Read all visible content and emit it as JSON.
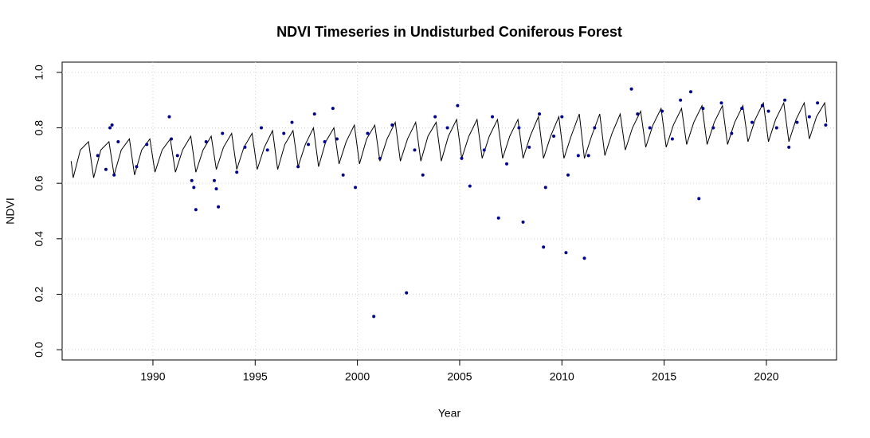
{
  "chart_data": {
    "type": "line",
    "title": "NDVI Timeseries in Undisturbed Coniferous Forest",
    "x_label": "Year",
    "y_label": "NDVI",
    "xlim": [
      1985.56,
      2023.43
    ],
    "ylim": [
      -0.037,
      1.037
    ],
    "xticks": [
      1990,
      1995,
      2000,
      2005,
      2010,
      2015,
      2020
    ],
    "yticks": [
      {
        "value": 0,
        "label": "0.0"
      },
      0.2,
      0.4,
      0.6,
      0.8,
      {
        "value": 1,
        "label": "1.0"
      }
    ],
    "grid": true,
    "line": {
      "color": "#000000",
      "x": [
        1986.0,
        1986.1,
        1986.45,
        1986.85,
        1987.1,
        1987.45,
        1987.85,
        1988.1,
        1988.45,
        1988.85,
        1989.1,
        1989.45,
        1989.85,
        1990.1,
        1990.45,
        1990.85,
        1991.1,
        1991.45,
        1991.85,
        1992.1,
        1992.45,
        1992.85,
        1993.1,
        1993.45,
        1993.85,
        1994.1,
        1994.45,
        1994.85,
        1995.1,
        1995.45,
        1995.85,
        1996.1,
        1996.45,
        1996.85,
        1997.1,
        1997.45,
        1997.85,
        1998.1,
        1998.45,
        1998.85,
        1999.1,
        1999.45,
        1999.85,
        2000.1,
        2000.45,
        2000.85,
        2001.1,
        2001.45,
        2001.85,
        2002.1,
        2002.45,
        2002.85,
        2003.1,
        2003.45,
        2003.85,
        2004.1,
        2004.45,
        2004.85,
        2005.1,
        2005.45,
        2005.85,
        2006.1,
        2006.45,
        2006.85,
        2007.1,
        2007.45,
        2007.85,
        2008.1,
        2008.45,
        2008.85,
        2009.1,
        2009.45,
        2009.85,
        2010.1,
        2010.45,
        2010.85,
        2011.1,
        2011.45,
        2011.85,
        2012.1,
        2012.45,
        2012.85,
        2013.1,
        2013.45,
        2013.85,
        2014.1,
        2014.45,
        2014.85,
        2015.1,
        2015.45,
        2015.85,
        2016.1,
        2016.45,
        2016.85,
        2017.1,
        2017.45,
        2017.85,
        2018.1,
        2018.45,
        2018.85,
        2019.1,
        2019.45,
        2019.85,
        2020.1,
        2020.45,
        2020.85,
        2021.1,
        2021.45,
        2021.85,
        2022.1,
        2022.45,
        2022.85,
        2022.95
      ],
      "values": [
        0.68,
        0.62,
        0.72,
        0.75,
        0.62,
        0.72,
        0.75,
        0.63,
        0.72,
        0.76,
        0.63,
        0.72,
        0.76,
        0.64,
        0.72,
        0.76,
        0.64,
        0.72,
        0.77,
        0.64,
        0.72,
        0.77,
        0.65,
        0.73,
        0.78,
        0.65,
        0.73,
        0.78,
        0.65,
        0.73,
        0.79,
        0.65,
        0.74,
        0.79,
        0.66,
        0.74,
        0.8,
        0.66,
        0.75,
        0.8,
        0.67,
        0.75,
        0.81,
        0.67,
        0.76,
        0.81,
        0.68,
        0.76,
        0.82,
        0.68,
        0.76,
        0.82,
        0.68,
        0.77,
        0.82,
        0.68,
        0.77,
        0.83,
        0.69,
        0.77,
        0.83,
        0.69,
        0.77,
        0.83,
        0.69,
        0.77,
        0.83,
        0.69,
        0.77,
        0.84,
        0.69,
        0.77,
        0.84,
        0.69,
        0.77,
        0.85,
        0.69,
        0.77,
        0.85,
        0.7,
        0.78,
        0.85,
        0.72,
        0.8,
        0.86,
        0.73,
        0.81,
        0.87,
        0.73,
        0.81,
        0.87,
        0.74,
        0.82,
        0.88,
        0.74,
        0.82,
        0.88,
        0.74,
        0.82,
        0.88,
        0.75,
        0.83,
        0.89,
        0.75,
        0.83,
        0.89,
        0.75,
        0.83,
        0.89,
        0.76,
        0.84,
        0.89,
        0.82
      ]
    },
    "points": {
      "color": "#00008b",
      "x": [
        1987.9,
        1988.0,
        1988.1,
        1987.7,
        1987.3,
        1988.3,
        1989.2,
        1989.7,
        1990.8,
        1990.9,
        1991.2,
        1991.9,
        1992.0,
        1992.1,
        1992.6,
        1993.0,
        1993.1,
        1993.2,
        1993.4,
        1994.1,
        1994.5,
        1995.3,
        1995.6,
        1996.4,
        1996.8,
        1997.1,
        1997.6,
        1997.9,
        1998.4,
        1998.8,
        1999.0,
        1999.3,
        1999.9,
        2000.5,
        2000.8,
        2001.1,
        2001.7,
        2002.4,
        2002.8,
        2003.2,
        2003.8,
        2004.4,
        2004.9,
        2005.1,
        2005.5,
        2006.2,
        2006.6,
        2006.9,
        2007.3,
        2007.9,
        2008.1,
        2008.4,
        2008.9,
        2009.1,
        2009.2,
        2009.6,
        2010.0,
        2010.2,
        2010.3,
        2010.8,
        2011.1,
        2011.3,
        2011.6,
        2013.4,
        2013.7,
        2014.3,
        2014.9,
        2015.4,
        2015.8,
        2016.3,
        2016.7,
        2016.9,
        2017.4,
        2017.8,
        2018.3,
        2018.8,
        2019.3,
        2019.8,
        2020.1,
        2020.5,
        2020.9,
        2021.1,
        2021.5,
        2022.1,
        2022.5,
        2022.9
      ],
      "values": [
        0.8,
        0.81,
        0.63,
        0.65,
        0.7,
        0.75,
        0.66,
        0.74,
        0.84,
        0.76,
        0.7,
        0.61,
        0.585,
        0.505,
        0.75,
        0.61,
        0.58,
        0.515,
        0.78,
        0.64,
        0.73,
        0.8,
        0.72,
        0.78,
        0.82,
        0.66,
        0.74,
        0.85,
        0.75,
        0.87,
        0.76,
        0.63,
        0.585,
        0.78,
        0.12,
        0.69,
        0.81,
        0.205,
        0.72,
        0.63,
        0.84,
        0.8,
        0.88,
        0.69,
        0.59,
        0.72,
        0.84,
        0.475,
        0.67,
        0.8,
        0.46,
        0.73,
        0.85,
        0.37,
        0.585,
        0.77,
        0.84,
        0.35,
        0.63,
        0.7,
        0.33,
        0.7,
        0.8,
        0.94,
        0.85,
        0.8,
        0.86,
        0.76,
        0.9,
        0.93,
        0.545,
        0.87,
        0.8,
        0.89,
        0.78,
        0.87,
        0.82,
        0.88,
        0.86,
        0.8,
        0.9,
        0.73,
        0.82,
        0.84,
        0.89,
        0.81
      ]
    }
  }
}
